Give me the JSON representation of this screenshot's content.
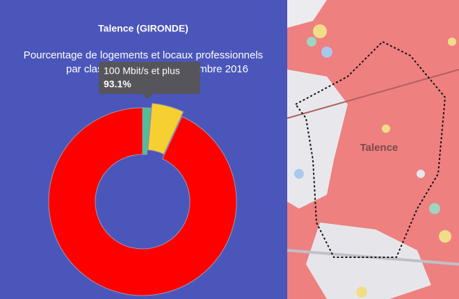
{
  "chart_data": {
    "type": "donut",
    "title": "Talence (GIRONDE)",
    "subtitle": [
      "Pourcentage de logements et locaux professionnels",
      "par classes",
      "mbre 2016"
    ],
    "categories": [
      null,
      null,
      "100 Mbit/s et plus"
    ],
    "values": [
      1.4,
      5.5,
      93.1
    ],
    "value_labels": [
      null,
      null,
      "93.1%"
    ],
    "colors": [
      "#4fbf95",
      "#f6d030",
      "#ff0000"
    ]
  },
  "map": {
    "label": "Talence"
  }
}
